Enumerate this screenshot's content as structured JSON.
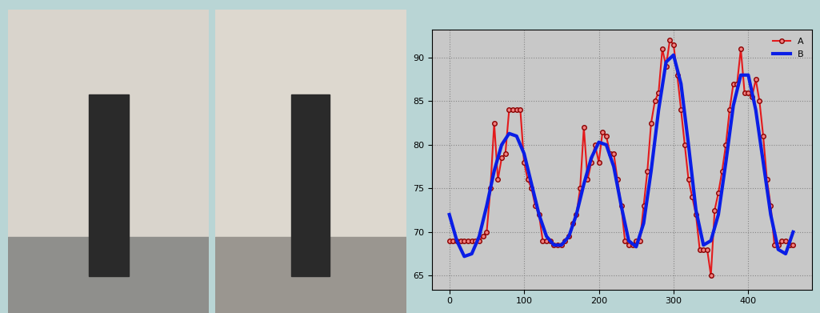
{
  "chart_data": {
    "type": "line",
    "xlim": [
      -23,
      485
    ],
    "xticks": [
      0,
      100,
      200,
      300,
      400
    ],
    "ylim": [
      63.4,
      93.2
    ],
    "yticks": [
      65,
      70,
      75,
      80,
      85,
      90
    ],
    "grid": true,
    "legend": "upper right",
    "series": [
      {
        "name": "A",
        "color": "#e31a1c",
        "marker": "o",
        "line_style": "solid",
        "x": [
          0,
          5,
          10,
          15,
          20,
          25,
          30,
          35,
          40,
          45,
          50,
          55,
          60,
          65,
          70,
          75,
          80,
          85,
          90,
          95,
          100,
          105,
          110,
          115,
          120,
          125,
          130,
          135,
          140,
          145,
          150,
          155,
          160,
          165,
          170,
          175,
          180,
          185,
          190,
          195,
          200,
          205,
          210,
          215,
          220,
          225,
          230,
          235,
          240,
          245,
          250,
          255,
          260,
          265,
          270,
          275,
          280,
          285,
          290,
          295,
          300,
          305,
          310,
          315,
          320,
          325,
          330,
          335,
          340,
          345,
          350,
          355,
          360,
          365,
          370,
          375,
          380,
          385,
          390,
          395,
          400,
          405,
          410,
          415,
          420,
          425,
          430,
          435,
          440,
          445,
          450,
          455,
          460
        ],
        "values": [
          69,
          69,
          69,
          69,
          69,
          69,
          69,
          69,
          69,
          69.5,
          70,
          75,
          82.5,
          76,
          78.5,
          79,
          84,
          84,
          84,
          84,
          78,
          76,
          75,
          73,
          72,
          69,
          69,
          69,
          68.5,
          68.5,
          68.5,
          69,
          69.5,
          71,
          72,
          75,
          82,
          76,
          78,
          80,
          78,
          81.5,
          81,
          79,
          79,
          76,
          73,
          69,
          68.5,
          68.5,
          69,
          69,
          73,
          77,
          82.5,
          85,
          86,
          91,
          89,
          92,
          91.5,
          88,
          84,
          80,
          76,
          74,
          72,
          68,
          68,
          68,
          65,
          72.5,
          74.5,
          77,
          80,
          84,
          87,
          87,
          91,
          86,
          86,
          85.5,
          87.5,
          85,
          81,
          76,
          73,
          68.5,
          68.5,
          69,
          69,
          68.5,
          68.5
        ]
      },
      {
        "name": "B",
        "color": "#0a1ee6",
        "line_style": "solid",
        "x": [
          0,
          10,
          20,
          30,
          40,
          50,
          60,
          70,
          80,
          90,
          100,
          110,
          120,
          130,
          140,
          150,
          160,
          170,
          180,
          190,
          200,
          210,
          220,
          230,
          240,
          250,
          260,
          270,
          280,
          290,
          300,
          310,
          320,
          330,
          340,
          350,
          360,
          370,
          380,
          390,
          400,
          410,
          420,
          430,
          440,
          450,
          460
        ],
        "values": [
          72,
          69,
          67.2,
          67.5,
          69.5,
          73,
          77,
          80,
          81.3,
          81,
          79,
          75.5,
          72,
          69.5,
          68.5,
          68.5,
          69.5,
          72,
          75.5,
          78.5,
          80.3,
          80,
          77.5,
          73,
          69,
          68.3,
          71,
          77,
          84,
          89.5,
          90.3,
          87,
          80,
          72.5,
          68.5,
          69,
          72,
          78,
          84.5,
          88,
          88,
          84,
          78,
          72,
          68,
          67.5,
          70
        ]
      }
    ]
  }
}
